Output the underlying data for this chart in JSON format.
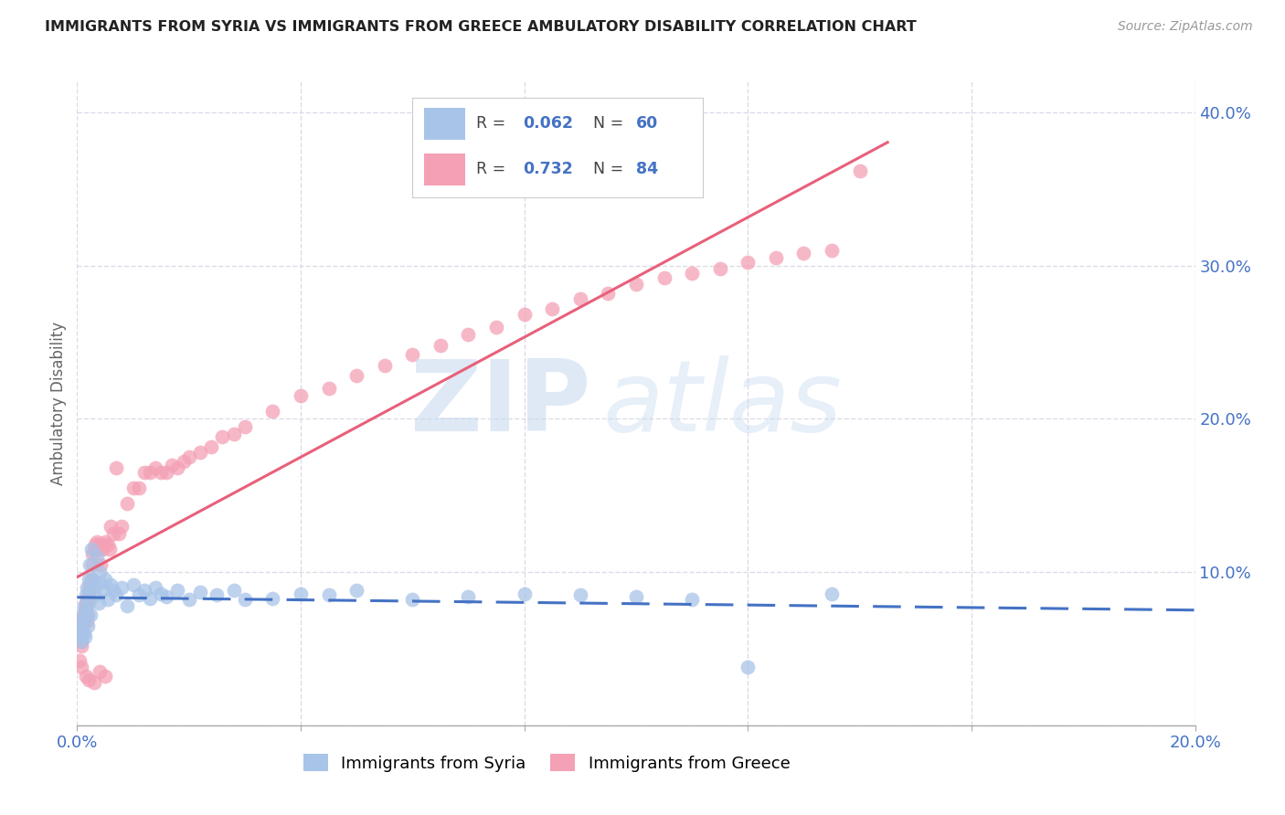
{
  "title": "IMMIGRANTS FROM SYRIA VS IMMIGRANTS FROM GREECE AMBULATORY DISABILITY CORRELATION CHART",
  "source": "Source: ZipAtlas.com",
  "ylabel": "Ambulatory Disability",
  "xlim": [
    0.0,
    0.2
  ],
  "ylim": [
    0.0,
    0.42
  ],
  "syria_color": "#a8c4e8",
  "greece_color": "#f4a0b5",
  "syria_line_color": "#4472c4",
  "greece_line_color": "#e8607a",
  "syria_R": 0.062,
  "syria_N": 60,
  "greece_R": 0.732,
  "greece_N": 84,
  "background_color": "#ffffff",
  "grid_color": "#d8d8e8",
  "syria_x": [
    0.0005,
    0.0006,
    0.0007,
    0.0008,
    0.001,
    0.001,
    0.0012,
    0.0013,
    0.0014,
    0.0015,
    0.0016,
    0.0017,
    0.0018,
    0.0019,
    0.002,
    0.0021,
    0.0022,
    0.0023,
    0.0024,
    0.0025,
    0.0028,
    0.003,
    0.0032,
    0.0035,
    0.0038,
    0.004,
    0.0042,
    0.0045,
    0.005,
    0.0055,
    0.006,
    0.0065,
    0.007,
    0.008,
    0.009,
    0.01,
    0.011,
    0.012,
    0.013,
    0.014,
    0.015,
    0.016,
    0.018,
    0.02,
    0.022,
    0.025,
    0.028,
    0.03,
    0.035,
    0.04,
    0.045,
    0.05,
    0.06,
    0.07,
    0.08,
    0.09,
    0.1,
    0.11,
    0.12,
    0.135
  ],
  "syria_y": [
    0.068,
    0.062,
    0.058,
    0.055,
    0.072,
    0.065,
    0.078,
    0.06,
    0.058,
    0.085,
    0.075,
    0.09,
    0.07,
    0.065,
    0.095,
    0.08,
    0.105,
    0.088,
    0.072,
    0.115,
    0.095,
    0.092,
    0.085,
    0.11,
    0.08,
    0.1,
    0.093,
    0.088,
    0.095,
    0.082,
    0.092,
    0.088,
    0.085,
    0.09,
    0.078,
    0.092,
    0.085,
    0.088,
    0.083,
    0.09,
    0.086,
    0.084,
    0.088,
    0.082,
    0.087,
    0.085,
    0.088,
    0.082,
    0.083,
    0.086,
    0.085,
    0.088,
    0.082,
    0.084,
    0.086,
    0.085,
    0.084,
    0.082,
    0.038,
    0.086
  ],
  "greece_x": [
    0.0005,
    0.0006,
    0.0007,
    0.0008,
    0.0009,
    0.001,
    0.0011,
    0.0012,
    0.0013,
    0.0014,
    0.0015,
    0.0016,
    0.0017,
    0.0018,
    0.0019,
    0.002,
    0.0021,
    0.0022,
    0.0023,
    0.0025,
    0.0027,
    0.0028,
    0.003,
    0.0032,
    0.0035,
    0.0038,
    0.004,
    0.0042,
    0.0045,
    0.0048,
    0.005,
    0.0055,
    0.0058,
    0.006,
    0.0065,
    0.007,
    0.0075,
    0.008,
    0.009,
    0.01,
    0.011,
    0.012,
    0.013,
    0.014,
    0.015,
    0.016,
    0.017,
    0.018,
    0.019,
    0.02,
    0.022,
    0.024,
    0.026,
    0.028,
    0.03,
    0.035,
    0.04,
    0.045,
    0.05,
    0.055,
    0.06,
    0.065,
    0.07,
    0.075,
    0.08,
    0.085,
    0.09,
    0.095,
    0.1,
    0.105,
    0.11,
    0.115,
    0.12,
    0.125,
    0.13,
    0.135,
    0.0005,
    0.0008,
    0.0015,
    0.002,
    0.003,
    0.004,
    0.005,
    0.14
  ],
  "greece_y": [
    0.062,
    0.058,
    0.055,
    0.052,
    0.06,
    0.065,
    0.07,
    0.068,
    0.072,
    0.075,
    0.078,
    0.08,
    0.082,
    0.068,
    0.072,
    0.085,
    0.088,
    0.09,
    0.092,
    0.095,
    0.105,
    0.112,
    0.115,
    0.118,
    0.12,
    0.115,
    0.118,
    0.105,
    0.115,
    0.118,
    0.12,
    0.118,
    0.115,
    0.13,
    0.125,
    0.168,
    0.125,
    0.13,
    0.145,
    0.155,
    0.155,
    0.165,
    0.165,
    0.168,
    0.165,
    0.165,
    0.17,
    0.168,
    0.172,
    0.175,
    0.178,
    0.182,
    0.188,
    0.19,
    0.195,
    0.205,
    0.215,
    0.22,
    0.228,
    0.235,
    0.242,
    0.248,
    0.255,
    0.26,
    0.268,
    0.272,
    0.278,
    0.282,
    0.288,
    0.292,
    0.295,
    0.298,
    0.302,
    0.305,
    0.308,
    0.31,
    0.042,
    0.038,
    0.032,
    0.03,
    0.028,
    0.035,
    0.032,
    0.362
  ]
}
